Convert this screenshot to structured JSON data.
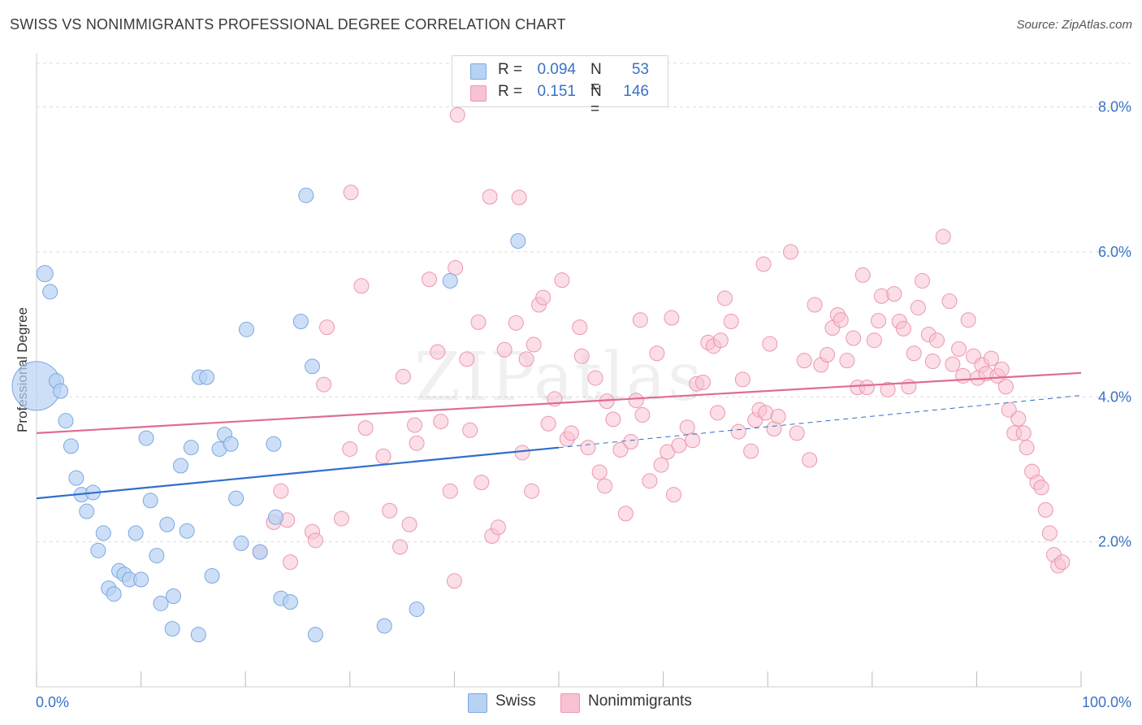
{
  "header": {
    "title": "SWISS VS NONIMMIGRANTS PROFESSIONAL DEGREE CORRELATION CHART",
    "source": "Source: ZipAtlas.com"
  },
  "colors": {
    "swiss_fill": "#b8d2f3",
    "swiss_stroke": "#7aa8e0",
    "swiss_line": "#2f6fcc",
    "nonimm_fill": "#f7c2d1",
    "nonimm_stroke": "#ec97b0",
    "nonimm_line": "#e06c93",
    "tick_label": "#3a72c6",
    "grid": "#dddddd"
  },
  "legend": {
    "rows": [
      {
        "r_label": "R =",
        "r_value": "0.094",
        "n_label": "N =",
        "n_value": "53"
      },
      {
        "r_label": "R =",
        "r_value": "0.151",
        "n_label": "N =",
        "n_value": "146"
      }
    ]
  },
  "bottom_legend": {
    "swiss": "Swiss",
    "nonimmigrants": "Nonimmigrants"
  },
  "chart_data": {
    "type": "scatter",
    "title": "SWISS VS NONIMMIGRANTS PROFESSIONAL DEGREE CORRELATION CHART",
    "xlabel": "",
    "ylabel": "Professional Degree",
    "xlim": [
      0,
      100
    ],
    "ylim": [
      0,
      8.6
    ],
    "x_tick_labels": [
      "0.0%",
      "100.0%"
    ],
    "y_ticks": [
      2,
      4,
      6,
      8
    ],
    "y_tick_labels": [
      "2.0%",
      "4.0%",
      "6.0%",
      "8.0%"
    ],
    "grid": "horizontal dashed",
    "legend_position": "top-center",
    "watermark": "ZIPatlas",
    "series": [
      {
        "name": "Swiss",
        "R": 0.094,
        "N": 53,
        "trend": {
          "x0": 0,
          "y0": 2.6,
          "x1": 50,
          "y1": 3.3,
          "dashed_to": {
            "x": 100,
            "y": 4.02
          }
        },
        "points": [
          [
            0.0,
            4.15,
            30
          ],
          [
            0.8,
            5.7,
            10
          ],
          [
            1.3,
            5.45,
            9
          ],
          [
            1.9,
            4.22,
            9
          ],
          [
            2.3,
            4.08,
            9
          ],
          [
            2.8,
            3.67,
            9
          ],
          [
            3.3,
            3.32,
            9
          ],
          [
            3.8,
            2.88,
            9
          ],
          [
            4.3,
            2.65,
            9
          ],
          [
            4.8,
            2.42,
            9
          ],
          [
            5.4,
            2.68,
            9
          ],
          [
            5.9,
            1.88,
            9
          ],
          [
            6.4,
            2.12,
            9
          ],
          [
            6.9,
            1.36,
            9
          ],
          [
            7.4,
            1.28,
            9
          ],
          [
            7.9,
            1.6,
            9
          ],
          [
            8.4,
            1.55,
            9
          ],
          [
            8.9,
            1.48,
            9
          ],
          [
            9.5,
            2.12,
            9
          ],
          [
            10.0,
            1.48,
            9
          ],
          [
            10.5,
            3.43,
            9
          ],
          [
            10.9,
            2.57,
            9
          ],
          [
            11.5,
            1.81,
            9
          ],
          [
            11.9,
            1.15,
            9
          ],
          [
            12.5,
            2.24,
            9
          ],
          [
            13.0,
            0.8,
            9
          ],
          [
            13.1,
            1.25,
            9
          ],
          [
            13.8,
            3.05,
            9
          ],
          [
            14.4,
            2.15,
            9
          ],
          [
            14.8,
            3.3,
            9
          ],
          [
            15.5,
            0.72,
            9
          ],
          [
            15.6,
            4.27,
            9
          ],
          [
            16.3,
            4.27,
            9
          ],
          [
            16.8,
            1.53,
            9
          ],
          [
            17.5,
            3.28,
            9
          ],
          [
            18.0,
            3.48,
            9
          ],
          [
            18.6,
            3.35,
            9
          ],
          [
            19.1,
            2.6,
            9
          ],
          [
            19.6,
            1.98,
            9
          ],
          [
            20.1,
            4.93,
            9
          ],
          [
            21.4,
            1.86,
            9
          ],
          [
            22.7,
            3.35,
            9
          ],
          [
            22.9,
            2.34,
            9
          ],
          [
            23.4,
            1.22,
            9
          ],
          [
            24.3,
            1.17,
            9
          ],
          [
            25.3,
            5.04,
            9
          ],
          [
            25.8,
            6.78,
            9
          ],
          [
            26.4,
            4.42,
            9
          ],
          [
            26.7,
            0.72,
            9
          ],
          [
            33.3,
            0.84,
            9
          ],
          [
            36.4,
            1.07,
            9
          ],
          [
            39.6,
            5.6,
            9
          ],
          [
            46.1,
            6.15,
            9
          ]
        ]
      },
      {
        "name": "Nonimmigrants",
        "R": 0.151,
        "N": 146,
        "trend": {
          "x0": 0,
          "y0": 3.5,
          "x1": 100,
          "y1": 4.33
        },
        "points": [
          [
            21.4,
            1.86
          ],
          [
            22.7,
            2.27
          ],
          [
            23.4,
            2.7
          ],
          [
            24.0,
            2.3
          ],
          [
            24.3,
            1.72
          ],
          [
            26.4,
            2.14
          ],
          [
            26.7,
            2.02
          ],
          [
            27.5,
            4.17
          ],
          [
            29.2,
            2.32
          ],
          [
            30.0,
            3.28
          ],
          [
            30.1,
            6.82
          ],
          [
            31.1,
            5.53
          ],
          [
            31.5,
            3.57
          ],
          [
            33.2,
            3.18
          ],
          [
            33.8,
            2.43
          ],
          [
            34.8,
            1.93
          ],
          [
            35.1,
            4.28
          ],
          [
            35.7,
            2.24
          ],
          [
            36.2,
            3.61
          ],
          [
            36.4,
            3.36
          ],
          [
            37.6,
            5.62
          ],
          [
            38.4,
            4.62
          ],
          [
            38.7,
            3.66
          ],
          [
            39.6,
            2.7
          ],
          [
            40.1,
            5.78
          ],
          [
            40.0,
            1.46
          ],
          [
            40.3,
            7.89
          ],
          [
            41.2,
            4.52
          ],
          [
            41.5,
            3.54
          ],
          [
            42.3,
            5.03
          ],
          [
            42.6,
            2.82
          ],
          [
            43.4,
            6.76
          ],
          [
            43.6,
            2.08
          ],
          [
            44.2,
            2.2
          ],
          [
            44.8,
            4.65
          ],
          [
            45.9,
            5.02
          ],
          [
            46.2,
            6.75
          ],
          [
            46.5,
            3.23
          ],
          [
            46.9,
            4.52
          ],
          [
            47.4,
            2.7
          ],
          [
            47.6,
            4.72
          ],
          [
            48.1,
            5.27
          ],
          [
            48.5,
            5.37
          ],
          [
            49.0,
            3.63
          ],
          [
            49.6,
            3.97
          ],
          [
            50.3,
            5.61
          ],
          [
            50.8,
            3.42
          ],
          [
            51.2,
            3.5
          ],
          [
            52.0,
            4.96
          ],
          [
            52.2,
            4.56
          ],
          [
            52.8,
            3.3
          ],
          [
            53.5,
            4.26
          ],
          [
            53.9,
            2.96
          ],
          [
            54.4,
            2.77
          ],
          [
            54.6,
            3.94
          ],
          [
            55.2,
            3.69
          ],
          [
            55.9,
            3.27
          ],
          [
            56.4,
            2.39
          ],
          [
            56.9,
            3.38
          ],
          [
            57.4,
            3.95
          ],
          [
            57.8,
            5.06
          ],
          [
            58.0,
            3.75
          ],
          [
            58.7,
            2.84
          ],
          [
            59.4,
            4.6
          ],
          [
            59.8,
            3.06
          ],
          [
            60.4,
            3.24
          ],
          [
            60.8,
            5.09
          ],
          [
            61.0,
            2.65
          ],
          [
            61.5,
            3.33
          ],
          [
            62.3,
            3.58
          ],
          [
            62.8,
            3.4
          ],
          [
            63.2,
            4.18
          ],
          [
            63.8,
            4.2
          ],
          [
            64.3,
            4.75
          ],
          [
            64.8,
            4.7
          ],
          [
            65.2,
            3.78
          ],
          [
            65.5,
            4.78
          ],
          [
            65.9,
            5.36
          ],
          [
            66.5,
            5.04
          ],
          [
            67.2,
            3.52
          ],
          [
            67.6,
            4.24
          ],
          [
            68.4,
            3.25
          ],
          [
            68.8,
            3.68
          ],
          [
            69.2,
            3.82
          ],
          [
            69.6,
            5.83
          ],
          [
            69.8,
            3.78
          ],
          [
            70.2,
            4.73
          ],
          [
            70.6,
            3.56
          ],
          [
            71.0,
            3.73
          ],
          [
            72.2,
            6.0
          ],
          [
            72.8,
            3.5
          ],
          [
            73.5,
            4.5
          ],
          [
            74.0,
            3.13
          ],
          [
            74.5,
            5.27
          ],
          [
            75.1,
            4.44
          ],
          [
            75.7,
            4.58
          ],
          [
            76.2,
            4.95
          ],
          [
            76.7,
            5.13
          ],
          [
            77.0,
            5.06
          ],
          [
            77.6,
            4.5
          ],
          [
            78.2,
            4.81
          ],
          [
            78.6,
            4.13
          ],
          [
            79.1,
            5.68
          ],
          [
            79.5,
            4.13
          ],
          [
            80.2,
            4.78
          ],
          [
            80.6,
            5.05
          ],
          [
            80.9,
            5.39
          ],
          [
            81.5,
            4.1
          ],
          [
            82.1,
            5.42
          ],
          [
            82.6,
            5.04
          ],
          [
            83.0,
            4.94
          ],
          [
            83.5,
            4.14
          ],
          [
            84.0,
            4.6
          ],
          [
            84.4,
            5.23
          ],
          [
            84.8,
            5.6
          ],
          [
            85.4,
            4.86
          ],
          [
            85.8,
            4.49
          ],
          [
            86.2,
            4.78
          ],
          [
            86.8,
            6.21
          ],
          [
            87.4,
            5.32
          ],
          [
            87.7,
            4.45
          ],
          [
            88.3,
            4.66
          ],
          [
            88.7,
            4.29
          ],
          [
            89.2,
            5.06
          ],
          [
            89.7,
            4.56
          ],
          [
            90.1,
            4.26
          ],
          [
            90.5,
            4.44
          ],
          [
            90.9,
            4.32
          ],
          [
            91.4,
            4.53
          ],
          [
            92.0,
            4.29
          ],
          [
            92.4,
            4.38
          ],
          [
            92.8,
            4.14
          ],
          [
            93.1,
            3.82
          ],
          [
            93.6,
            3.5
          ],
          [
            94.0,
            3.7
          ],
          [
            94.5,
            3.5
          ],
          [
            94.8,
            3.3
          ],
          [
            95.3,
            2.97
          ],
          [
            95.8,
            2.82
          ],
          [
            96.2,
            2.75
          ],
          [
            96.6,
            2.44
          ],
          [
            97.0,
            2.12
          ],
          [
            97.4,
            1.82
          ],
          [
            97.8,
            1.67
          ],
          [
            98.2,
            1.72
          ],
          [
            27.8,
            4.96
          ]
        ]
      }
    ]
  }
}
